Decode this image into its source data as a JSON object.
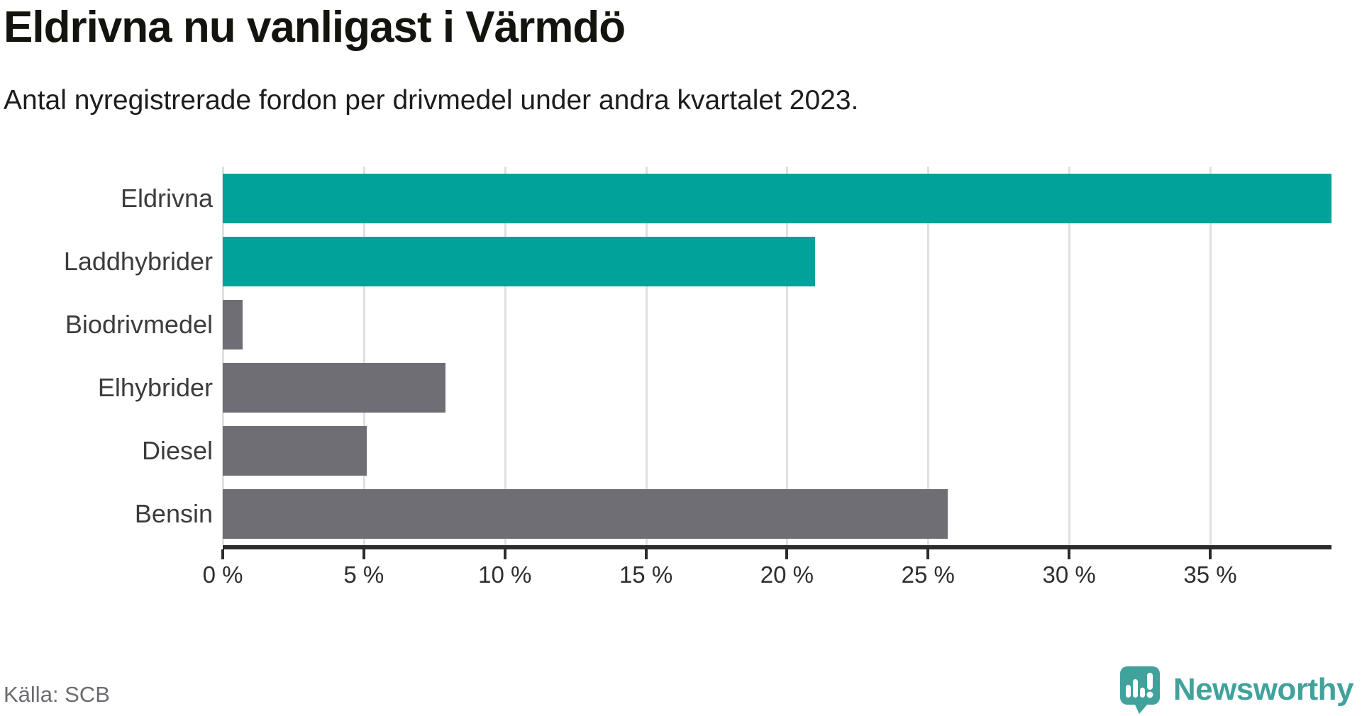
{
  "header": {
    "title": "Eldrivna nu vanligast i Värmdö",
    "subtitle": "Antal nyregistrerade fordon per drivmedel under andra kvartalet 2023."
  },
  "chart_data": {
    "type": "bar",
    "orientation": "horizontal",
    "title": "Eldrivna nu vanligast i Värmdö",
    "subtitle": "Antal nyregistrerade fordon per drivmedel under andra kvartalet 2023.",
    "categories": [
      "Eldrivna",
      "Laddhybrider",
      "Biodrivmedel",
      "Elhybrider",
      "Diesel",
      "Bensin"
    ],
    "values": [
      39.3,
      21.0,
      0.7,
      7.9,
      5.1,
      25.7
    ],
    "unit": "%",
    "bar_colors": [
      "#00a29a",
      "#00a29a",
      "#6e6e74",
      "#6e6e74",
      "#6e6e74",
      "#6e6e74"
    ],
    "highlight_color": "#00a29a",
    "default_color": "#6e6e74",
    "xlabel": "",
    "ylabel": "",
    "xlim": [
      0,
      39.3
    ],
    "x_ticks": [
      0,
      5,
      10,
      15,
      20,
      25,
      30,
      35
    ],
    "x_tick_labels": [
      "0 %",
      "5 %",
      "10 %",
      "15 %",
      "20 %",
      "25 %",
      "30 %",
      "35 %"
    ],
    "grid": "vertical",
    "legend": "none"
  },
  "footer": {
    "source": "Källa: SCB",
    "brand": "Newsworthy"
  },
  "colors": {
    "teal_bar": "#00a29a",
    "gray_bar": "#6e6e74",
    "axis": "#2c2c2c",
    "gridline": "#e0e0e0",
    "category_label": "#3c3c3c",
    "tick_label": "#2e2e2e",
    "source_text": "#6b6b70",
    "brand_teal": "#41a29c"
  }
}
